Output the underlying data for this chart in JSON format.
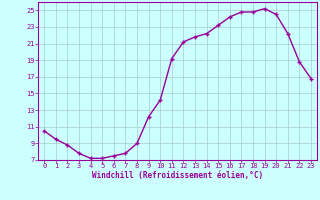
{
  "x": [
    0,
    1,
    2,
    3,
    4,
    5,
    6,
    7,
    8,
    9,
    10,
    11,
    12,
    13,
    14,
    15,
    16,
    17,
    18,
    19,
    20,
    21,
    22,
    23
  ],
  "y": [
    10.5,
    9.5,
    8.8,
    7.8,
    7.2,
    7.2,
    7.5,
    7.8,
    9.0,
    12.2,
    14.2,
    19.2,
    21.2,
    21.8,
    22.2,
    23.2,
    24.2,
    24.8,
    24.8,
    25.2,
    24.5,
    22.2,
    18.8,
    16.8
  ],
  "line_color": "#990099",
  "marker": "+",
  "marker_size": 3.5,
  "line_width": 1.0,
  "bg_color": "#ccffff",
  "grid_color": "#aacccc",
  "xlim": [
    -0.5,
    23.5
  ],
  "ylim": [
    7,
    26
  ],
  "yticks": [
    7,
    9,
    11,
    13,
    15,
    17,
    19,
    21,
    23,
    25
  ],
  "xticks": [
    0,
    1,
    2,
    3,
    4,
    5,
    6,
    7,
    8,
    9,
    10,
    11,
    12,
    13,
    14,
    15,
    16,
    17,
    18,
    19,
    20,
    21,
    22,
    23
  ],
  "tick_label_color": "#990099",
  "tick_label_fontsize": 5.0,
  "xlabel": "Windchill (Refroidissement éolien,°C)",
  "xlabel_fontsize": 5.5,
  "xlabel_color": "#990099"
}
